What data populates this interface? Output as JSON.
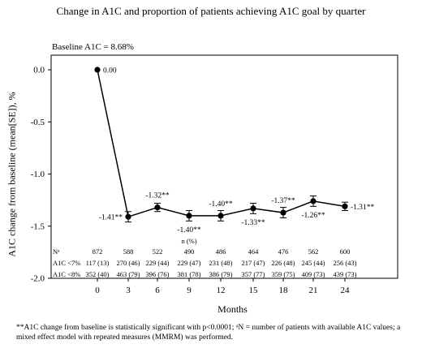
{
  "title": "Change in A1C and proportion of patients achieving A1C goal by quarter",
  "baseline_note": "Baseline A1C = 8.68%",
  "footnote": "**A1C change from baseline is statistically significant with p<0.0001; ᵃN = number of patients with available A1C values; a mixed effect model with repeated measures (MMRM) was performed.",
  "chart_data": {
    "type": "line",
    "title": "Change in A1C and proportion of patients achieving A1C goal by quarter",
    "xlabel": "Months",
    "ylabel": "A1C change from baseline (mean[SE]), %",
    "ylim": [
      -2.0,
      0.0
    ],
    "yticks": [
      "0.0",
      "-0.5",
      "-1.0",
      "-1.5",
      "-2.0"
    ],
    "ytick_values": [
      0.0,
      -0.5,
      -1.0,
      -1.5,
      -2.0
    ],
    "x": [
      0,
      3,
      6,
      9,
      12,
      15,
      18,
      21,
      24
    ],
    "xticks": [
      "0",
      "3",
      "6",
      "9",
      "12",
      "15",
      "18",
      "21",
      "24"
    ],
    "values": [
      0.0,
      -1.41,
      -1.32,
      -1.4,
      -1.4,
      -1.33,
      -1.37,
      -1.26,
      -1.31
    ],
    "se": [
      0.0,
      0.05,
      0.04,
      0.05,
      0.05,
      0.05,
      0.05,
      0.05,
      0.04
    ],
    "data_labels": [
      "0.00",
      "-1.41**",
      "-1.32**",
      "-1.40**",
      "-1.40**",
      "-1.33**",
      "-1.37**",
      "-1.26**",
      "-1.31**"
    ],
    "label_position": [
      "right",
      "left",
      "above",
      "below",
      "above",
      "below",
      "above",
      "below",
      "right"
    ],
    "table": {
      "header": "n (%)",
      "rows": [
        {
          "label": "Nᵃ",
          "values": [
            "872",
            "588",
            "522",
            "490",
            "486",
            "464",
            "476",
            "562",
            "600"
          ]
        },
        {
          "label": "A1C <7%",
          "values": [
            "117 (13)",
            "270 (46)",
            "229 (44)",
            "229 (47)",
            "231 (48)",
            "217 (47)",
            "226 (48)",
            "245 (44)",
            "256 (43)"
          ]
        },
        {
          "label": "A1C <8%",
          "values": [
            "352 (40)",
            "463 (79)",
            "396 (76)",
            "381 (78)",
            "386 (79)",
            "357 (77)",
            "359 (75)",
            "409 (73)",
            "439 (73)"
          ]
        }
      ]
    },
    "grid": false,
    "legend": "none",
    "line_color": "#000000"
  }
}
